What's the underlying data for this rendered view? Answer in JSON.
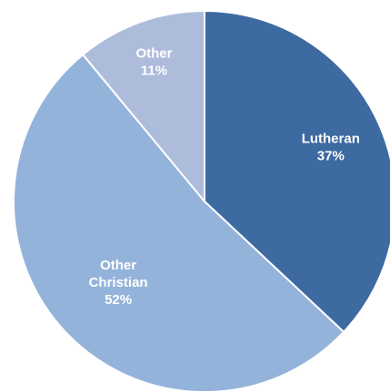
{
  "chart_data": {
    "type": "pie",
    "categories": [
      "Lutheran",
      "Other Christian",
      "Other"
    ],
    "values": [
      37,
      52,
      11
    ],
    "labels": [
      {
        "lines": [
          "Lutheran",
          "37%"
        ]
      },
      {
        "lines": [
          "Other",
          "Christian",
          "52%"
        ]
      },
      {
        "lines": [
          "Other",
          "11%"
        ]
      }
    ],
    "colors": [
      "#3d6aa1",
      "#94b3da",
      "#aebcdc"
    ],
    "start_angle_deg": 0,
    "direction": "clockwise",
    "title": "",
    "legend": "none"
  }
}
